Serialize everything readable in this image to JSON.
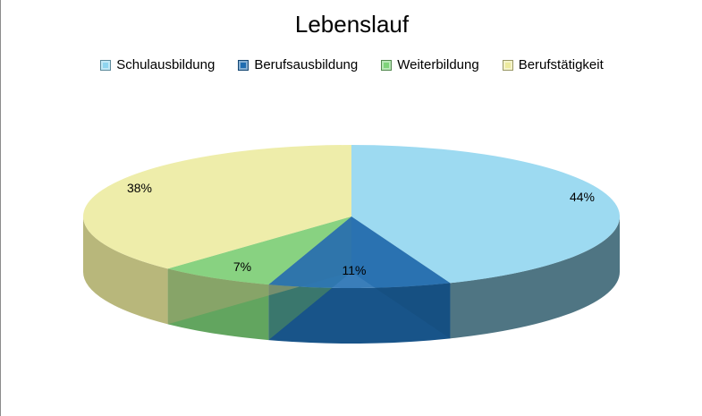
{
  "chart_data": {
    "type": "pie",
    "title": "Lebenslauf",
    "categories": [
      "Schulausbildung",
      "Berufsausbildung",
      "Weiterbildung",
      "Berufstätigkeit"
    ],
    "values": [
      44,
      11,
      7,
      38
    ],
    "labels": [
      "44%",
      "11%",
      "7%",
      "38%"
    ],
    "colors": [
      "#8fd5ef",
      "#1f6cb0",
      "#7ed37a",
      "#ecea9e"
    ],
    "legend_position": "top",
    "style": "3d"
  }
}
